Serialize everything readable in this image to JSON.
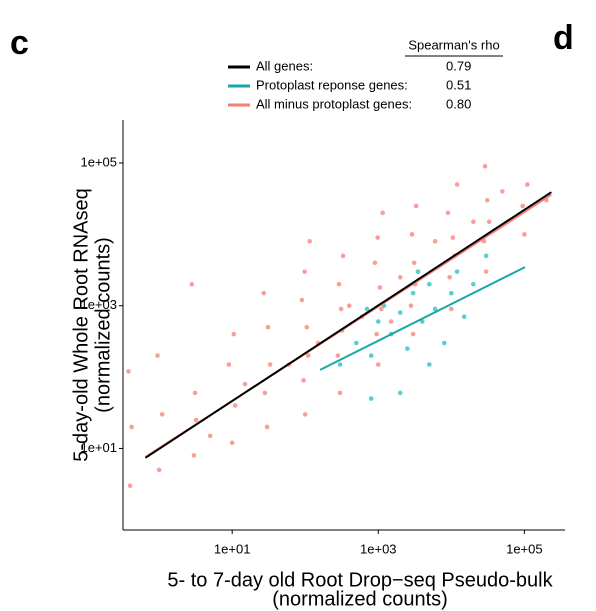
{
  "chart_data": {
    "type": "scatter",
    "panel_labels": [
      "c",
      "d"
    ],
    "legend_title": "Spearman's rho",
    "x_label": [
      "5- to 7-day old Root Drop−seq Pseudo-bulk",
      "(normalized counts)"
    ],
    "y_label": [
      "5-day-old Whole Root RNAseq",
      "(normalized counts)"
    ],
    "log_x": true,
    "log_y": true,
    "xlim": [
      0.32,
      360000
    ],
    "ylim": [
      0.72,
      400000
    ],
    "xticks": [
      {
        "value": 10,
        "label": "1e+01"
      },
      {
        "value": 1000,
        "label": "1e+03"
      },
      {
        "value": 100000,
        "label": "1e+05"
      }
    ],
    "yticks": [
      {
        "value": 10,
        "label": "1e+01"
      },
      {
        "value": 1000,
        "label": "1e+03"
      },
      {
        "value": 100000,
        "label": "1e+05"
      }
    ],
    "points": [
      {
        "color": "#f47f77",
        "x": [
          0.4,
          0.42,
          0.38,
          1,
          1.1,
          0.95,
          3,
          3.2,
          2.8,
          3.1,
          10,
          11,
          9,
          10.5,
          30,
          28,
          33,
          31,
          27,
          100,
          95,
          110,
          105,
          90,
          98,
          115,
          300,
          280,
          320,
          310,
          290,
          330,
          1000,
          950,
          1100,
          1050,
          900,
          980,
          1150,
          3000,
          2800,
          3200,
          3100,
          2900,
          3300,
          10000,
          9500,
          11000,
          10500,
          9000,
          12000,
          30000,
          28000,
          33000,
          31000,
          29000,
          100000,
          95000,
          110000,
          200000,
          60,
          150,
          600,
          2000,
          6000,
          20000,
          50000,
          5,
          15,
          400,
          1500
        ],
        "values": [
          3,
          20,
          120,
          5,
          30,
          200,
          8,
          25,
          2000,
          60,
          12,
          40,
          150,
          400,
          20,
          60,
          150,
          500,
          1500,
          30,
          90,
          200,
          500,
          1200,
          3000,
          8000,
          60,
          200,
          450,
          900,
          2000,
          5000,
          150,
          400,
          900,
          1800,
          4000,
          9000,
          20000,
          400,
          1000,
          2000,
          4000,
          10000,
          25000,
          900,
          2500,
          5000,
          9000,
          20000,
          50000,
          3000,
          8000,
          15000,
          30000,
          90000,
          10000,
          25000,
          50000,
          30000,
          150,
          300,
          700,
          2500,
          8000,
          15000,
          40000,
          15,
          80,
          1000,
          600
        ]
      },
      {
        "color": "#1fbfbd",
        "x": [
          300,
          500,
          800,
          1000,
          1500,
          2000,
          2500,
          3000,
          4000,
          5000,
          6000,
          8000,
          10000,
          12000,
          15000,
          20000,
          30000,
          2000,
          800,
          5000,
          1200,
          700,
          3500
        ],
        "values": [
          150,
          300,
          200,
          600,
          400,
          800,
          250,
          1500,
          600,
          2000,
          900,
          300,
          1500,
          3000,
          700,
          2000,
          5000,
          60,
          50,
          150,
          1000,
          900,
          3000
        ]
      }
    ],
    "series": [
      {
        "name": "All minus protoplast genes:",
        "rho": "0.80",
        "color": "#f47f77",
        "x": [
          0.65,
          234000
        ],
        "values": [
          7.6,
          36000
        ]
      },
      {
        "name": "Protoplast reponse genes:",
        "rho": "0.51",
        "color": "#1aa6a4",
        "x": [
          160,
          102000
        ],
        "values": [
          126,
          3470
        ]
      },
      {
        "name": "All genes:",
        "rho": "0.79",
        "color": "#000000",
        "x": [
          0.65,
          234000
        ],
        "values": [
          7.4,
          39000
        ]
      }
    ]
  }
}
